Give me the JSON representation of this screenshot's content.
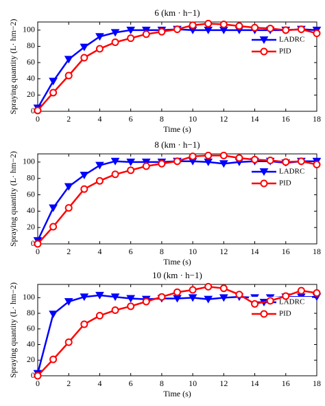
{
  "chart_data": [
    {
      "type": "line",
      "title": "6 (km · h−1)",
      "xlabel": "Time (s)",
      "ylabel": "Spraying quantity (L· hm−2)",
      "x": [
        0,
        1,
        2,
        3,
        4,
        5,
        6,
        7,
        8,
        9,
        10,
        11,
        12,
        13,
        14,
        15,
        16,
        17,
        18
      ],
      "series": [
        {
          "name": "LADRC",
          "color": "#0000ff",
          "marker": "triangle-down",
          "values": [
            4,
            37,
            64,
            79,
            92,
            97,
            100,
            100,
            100,
            101,
            100,
            100,
            100,
            100,
            100,
            100,
            100,
            101,
            100
          ]
        },
        {
          "name": "PID",
          "color": "#ff0000",
          "marker": "circle",
          "values": [
            1,
            23,
            44,
            66,
            77,
            85,
            90,
            95,
            98,
            101,
            106,
            108,
            107,
            105,
            103,
            102,
            100,
            101,
            96
          ]
        }
      ],
      "xlim": [
        0,
        18
      ],
      "xticks": [
        0,
        2,
        4,
        6,
        8,
        10,
        12,
        14,
        16,
        18
      ],
      "ylim": [
        0,
        110
      ],
      "yticks": [
        0,
        20,
        40,
        60,
        80,
        100
      ],
      "legend": "upper right"
    },
    {
      "type": "line",
      "title": "8 (km · h−1)",
      "xlabel": "Time (s)",
      "ylabel": "Spraying quantity (L· hm−2)",
      "x": [
        0,
        1,
        2,
        3,
        4,
        5,
        6,
        7,
        8,
        9,
        10,
        11,
        12,
        13,
        14,
        15,
        16,
        17,
        18
      ],
      "series": [
        {
          "name": "LADRC",
          "color": "#0000ff",
          "marker": "triangle-down",
          "values": [
            4,
            44,
            70,
            84,
            96,
            101,
            100,
            100,
            100,
            101,
            101,
            100,
            98,
            100,
            101,
            101,
            99,
            101,
            101
          ]
        },
        {
          "name": "PID",
          "color": "#ff0000",
          "marker": "circle",
          "values": [
            0,
            21,
            44,
            67,
            77,
            85,
            90,
            95,
            98,
            101,
            107,
            108,
            108,
            105,
            103,
            102,
            100,
            101,
            97
          ]
        }
      ],
      "xlim": [
        0,
        18
      ],
      "xticks": [
        0,
        2,
        4,
        6,
        8,
        10,
        12,
        14,
        16,
        18
      ],
      "ylim": [
        0,
        110
      ],
      "yticks": [
        0,
        20,
        40,
        60,
        80,
        100
      ],
      "legend": "upper right"
    },
    {
      "type": "line",
      "title": "10 (km · h−1)",
      "xlabel": "Time (s)",
      "ylabel": "Spraying quantity (L· hm−2)",
      "x": [
        0,
        1,
        2,
        3,
        4,
        5,
        6,
        7,
        8,
        9,
        10,
        11,
        12,
        13,
        14,
        15,
        16,
        17,
        18
      ],
      "series": [
        {
          "name": "LADRC",
          "color": "#0000ff",
          "marker": "triangle-down",
          "values": [
            3,
            79,
            95,
            101,
            103,
            101,
            99,
            98,
            99,
            99,
            100,
            98,
            100,
            101,
            100,
            100,
            101,
            101,
            101
          ]
        },
        {
          "name": "PID",
          "color": "#ff0000",
          "marker": "circle",
          "values": [
            0,
            21,
            43,
            66,
            77,
            84,
            89,
            95,
            101,
            107,
            110,
            114,
            112,
            104,
            92,
            96,
            102,
            109,
            106
          ]
        }
      ],
      "xlim": [
        0,
        18
      ],
      "xticks": [
        0,
        2,
        4,
        6,
        8,
        10,
        12,
        14,
        16,
        18
      ],
      "ylim": [
        0,
        117
      ],
      "yticks": [
        0,
        20,
        40,
        60,
        80,
        100
      ],
      "legend": "upper right"
    }
  ]
}
